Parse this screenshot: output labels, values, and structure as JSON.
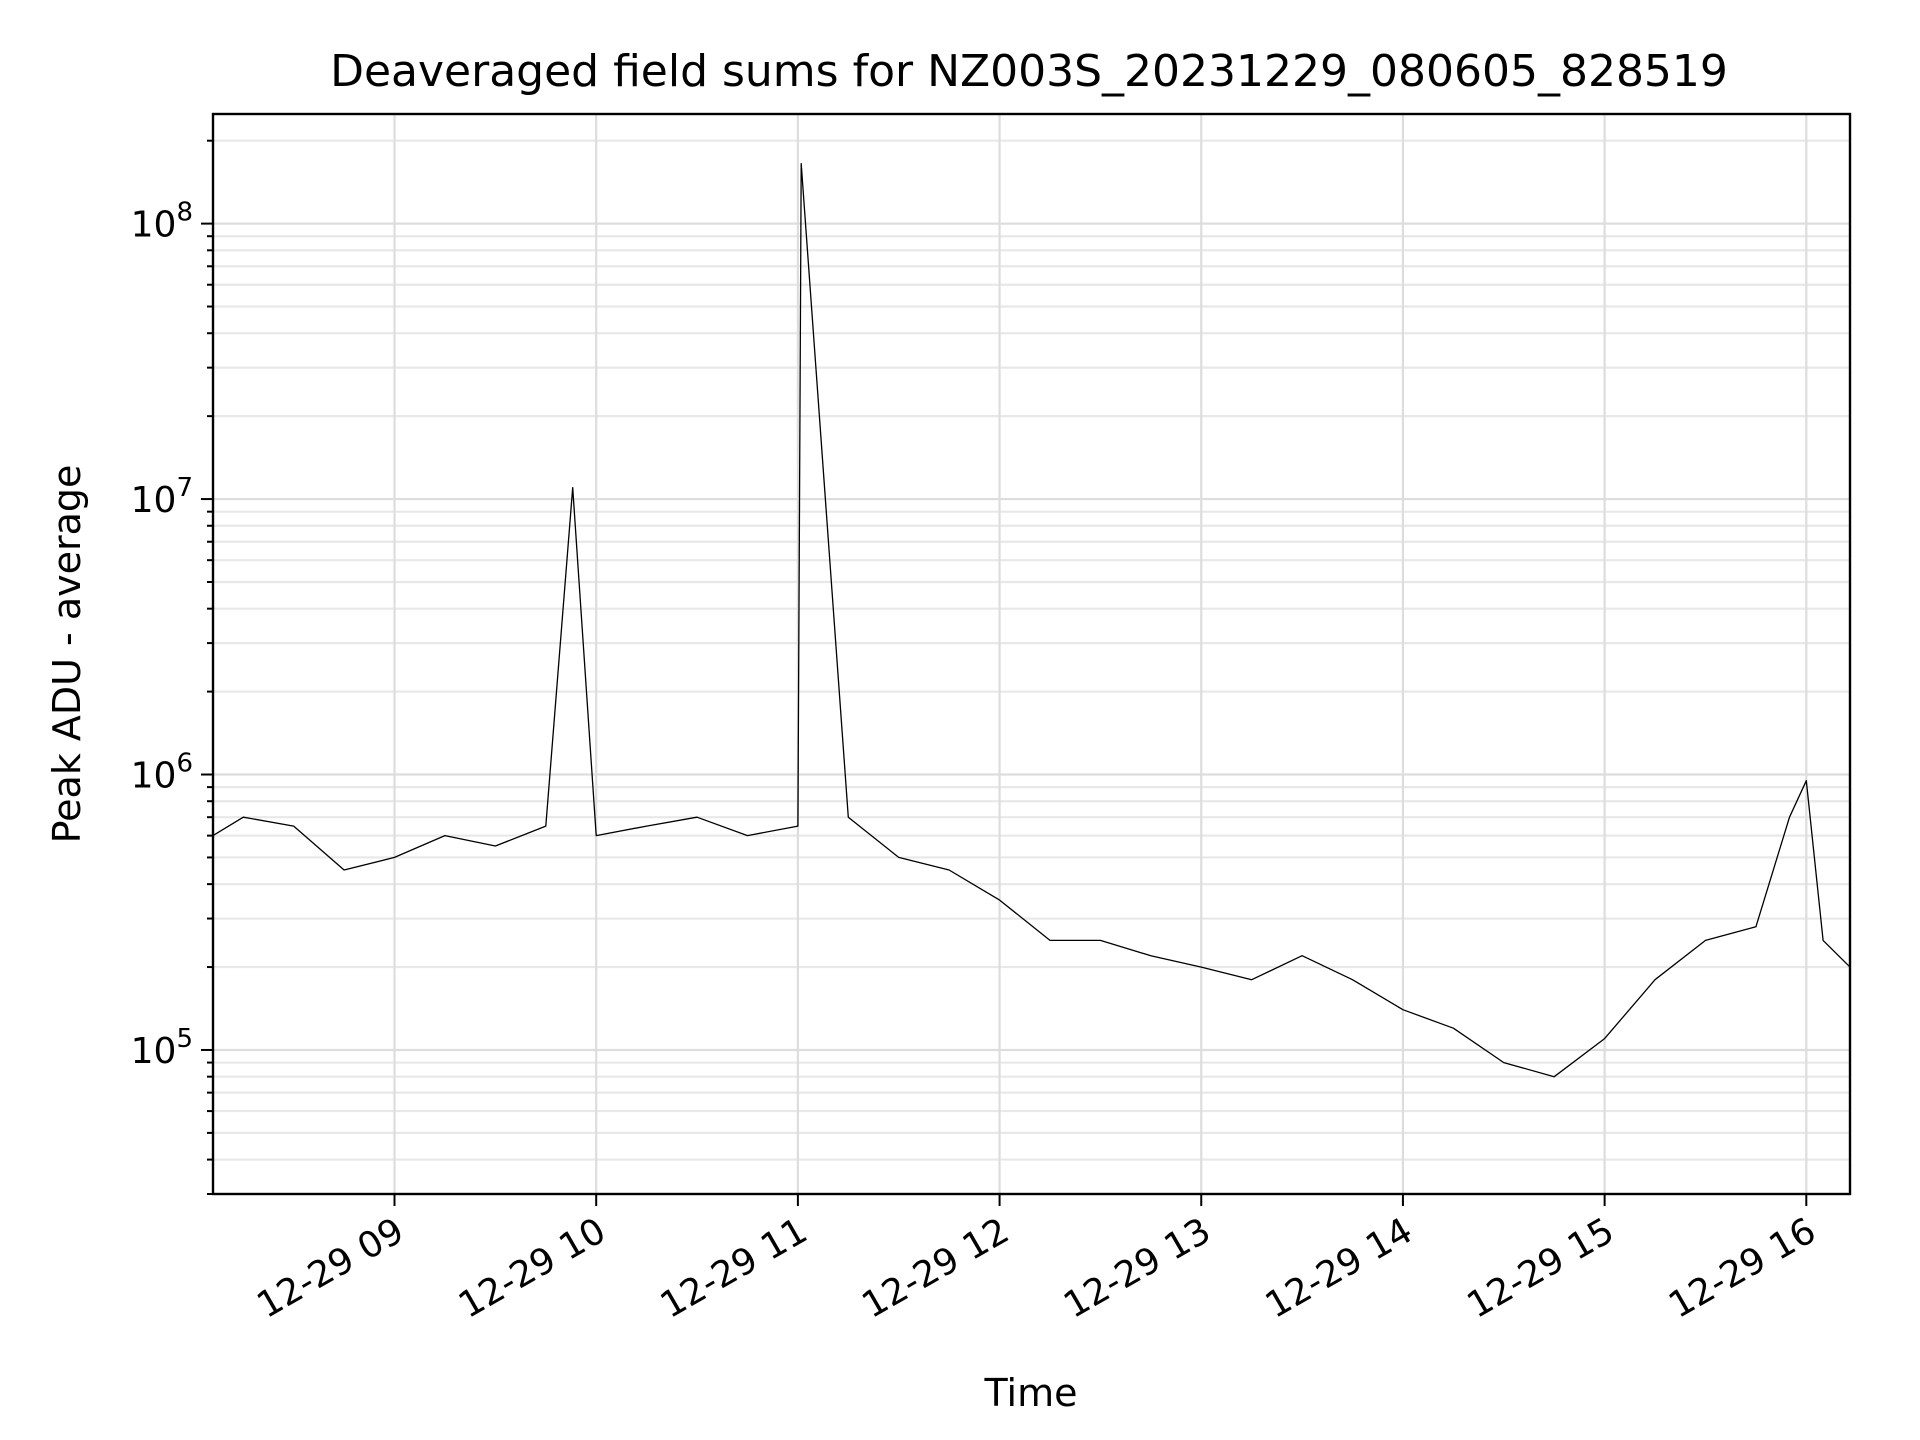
{
  "chart_data": {
    "type": "line",
    "title": "Deaveraged field sums for NZ003S_20231229_080605_828519",
    "xlabel": "Time",
    "ylabel": "Peak ADU - average",
    "xlim": [
      "2023-12-29 08:06",
      "2023-12-29 16:13"
    ],
    "ylim": [
      30000,
      250000000
    ],
    "y_scale": "log",
    "grid": true,
    "x_ticks": [
      "12-29 09",
      "12-29 10",
      "12-29 11",
      "12-29 12",
      "12-29 13",
      "12-29 14",
      "12-29 15",
      "12-29 16"
    ],
    "y_ticks": [
      {
        "value": 100000,
        "base": "10",
        "exp": "5"
      },
      {
        "value": 1000000,
        "base": "10",
        "exp": "6"
      },
      {
        "value": 10000000,
        "base": "10",
        "exp": "7"
      },
      {
        "value": 100000000,
        "base": "10",
        "exp": "8"
      }
    ],
    "series": [
      {
        "color": "#000000",
        "x": [
          "2023-12-29 08:06",
          "2023-12-29 08:15",
          "2023-12-29 08:30",
          "2023-12-29 08:45",
          "2023-12-29 09:00",
          "2023-12-29 09:15",
          "2023-12-29 09:30",
          "2023-12-29 09:45",
          "2023-12-29 09:53",
          "2023-12-29 10:00",
          "2023-12-29 10:15",
          "2023-12-29 10:30",
          "2023-12-29 10:45",
          "2023-12-29 11:00",
          "2023-12-29 11:01",
          "2023-12-29 11:15",
          "2023-12-29 11:30",
          "2023-12-29 11:45",
          "2023-12-29 12:00",
          "2023-12-29 12:15",
          "2023-12-29 12:30",
          "2023-12-29 12:45",
          "2023-12-29 13:00",
          "2023-12-29 13:15",
          "2023-12-29 13:30",
          "2023-12-29 13:45",
          "2023-12-29 14:00",
          "2023-12-29 14:15",
          "2023-12-29 14:30",
          "2023-12-29 14:45",
          "2023-12-29 15:00",
          "2023-12-29 15:15",
          "2023-12-29 15:30",
          "2023-12-29 15:45",
          "2023-12-29 15:55",
          "2023-12-29 16:00",
          "2023-12-29 16:05",
          "2023-12-29 16:13"
        ],
        "y": [
          600000,
          700000,
          650000,
          450000,
          500000,
          600000,
          550000,
          650000,
          11000000,
          600000,
          650000,
          700000,
          600000,
          650000,
          165000000,
          700000,
          500000,
          450000,
          350000,
          250000,
          250000,
          220000,
          200000,
          180000,
          220000,
          180000,
          140000,
          120000,
          90000,
          80000,
          110000,
          180000,
          250000,
          280000,
          700000,
          950000,
          250000,
          200000
        ]
      }
    ]
  }
}
